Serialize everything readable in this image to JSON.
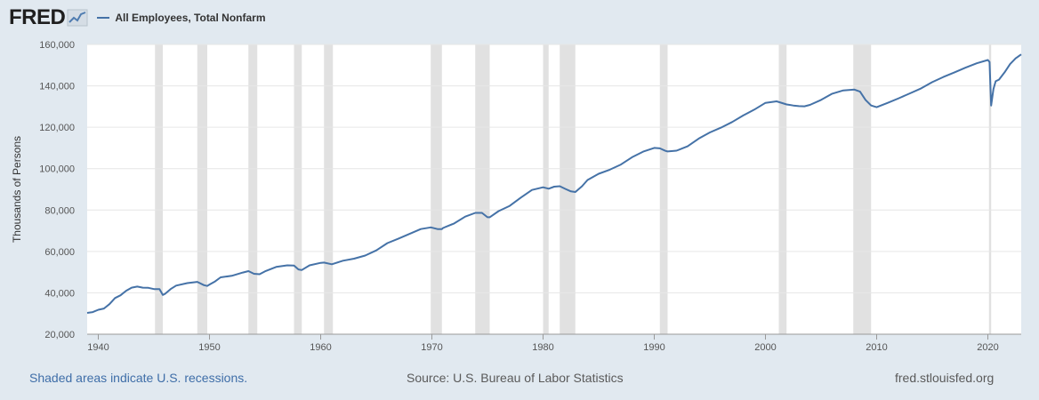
{
  "header": {
    "logo_text": "FRED",
    "logo_icon": "line-graph-icon",
    "legend_label": "All Employees, Total Nonfarm",
    "series_color": "#4572a7"
  },
  "footer": {
    "recession_note": "Shaded areas indicate U.S. recessions.",
    "source": "Source: U.S. Bureau of Labor Statistics",
    "site": "fred.stlouisfed.org"
  },
  "chart_data": {
    "type": "line",
    "title": "",
    "xlabel": "",
    "ylabel": "Thousands of Persons",
    "xlim": [
      1939,
      2023
    ],
    "ylim": [
      20000,
      160000
    ],
    "x_ticks": [
      1940,
      1950,
      1960,
      1970,
      1980,
      1990,
      2000,
      2010,
      2020
    ],
    "x_tick_labels": [
      "1940",
      "1950",
      "1960",
      "1970",
      "1980",
      "1990",
      "2000",
      "2010",
      "2020"
    ],
    "y_ticks": [
      20000,
      40000,
      60000,
      80000,
      100000,
      120000,
      140000,
      160000
    ],
    "y_tick_labels": [
      "20,000",
      "40,000",
      "60,000",
      "80,000",
      "100,000",
      "120,000",
      "140,000",
      "160,000"
    ],
    "grid": true,
    "recessions": [
      [
        1945.1,
        1945.8
      ],
      [
        1948.9,
        1949.8
      ],
      [
        1953.5,
        1954.3
      ],
      [
        1957.6,
        1958.3
      ],
      [
        1960.3,
        1961.1
      ],
      [
        1969.9,
        1970.9
      ],
      [
        1973.9,
        1975.2
      ],
      [
        1980.0,
        1980.5
      ],
      [
        1981.5,
        1982.9
      ],
      [
        1990.5,
        1991.2
      ],
      [
        2001.2,
        2001.9
      ],
      [
        2007.9,
        2009.5
      ],
      [
        2020.1,
        2020.3
      ]
    ],
    "series": [
      {
        "name": "All Employees, Total Nonfarm",
        "color": "#4572a7",
        "x": [
          1939.0,
          1939.5,
          1940.0,
          1940.5,
          1941.0,
          1941.5,
          1942.0,
          1942.5,
          1943.0,
          1943.5,
          1944.0,
          1944.5,
          1945.0,
          1945.5,
          1945.8,
          1946.0,
          1946.5,
          1947.0,
          1948.0,
          1948.9,
          1949.5,
          1949.8,
          1950.0,
          1950.5,
          1951.0,
          1952.0,
          1953.0,
          1953.5,
          1954.0,
          1954.5,
          1955.0,
          1956.0,
          1957.0,
          1957.6,
          1958.0,
          1958.3,
          1959.0,
          1960.0,
          1960.3,
          1961.0,
          1962.0,
          1963.0,
          1964.0,
          1965.0,
          1966.0,
          1967.0,
          1968.0,
          1969.0,
          1969.9,
          1970.5,
          1970.9,
          1971.0,
          1972.0,
          1973.0,
          1973.9,
          1974.5,
          1975.0,
          1975.2,
          1976.0,
          1977.0,
          1978.0,
          1979.0,
          1980.0,
          1980.5,
          1981.0,
          1981.5,
          1982.0,
          1982.5,
          1982.9,
          1983.5,
          1984.0,
          1985.0,
          1986.0,
          1987.0,
          1988.0,
          1989.0,
          1990.0,
          1990.5,
          1991.0,
          1991.2,
          1992.0,
          1993.0,
          1994.0,
          1995.0,
          1996.0,
          1997.0,
          1998.0,
          1999.0,
          2000.0,
          2001.0,
          2001.9,
          2002.5,
          2003.0,
          2003.5,
          2004.0,
          2005.0,
          2006.0,
          2007.0,
          2008.0,
          2008.5,
          2009.0,
          2009.5,
          2010.0,
          2011.0,
          2012.0,
          2013.0,
          2014.0,
          2015.0,
          2016.0,
          2017.0,
          2018.0,
          2019.0,
          2020.0,
          2020.15,
          2020.3,
          2020.5,
          2020.7,
          2021.0,
          2021.5,
          2022.0,
          2022.5,
          2023.0
        ],
        "y": [
          30300,
          30700,
          31800,
          32400,
          34500,
          37500,
          38800,
          41000,
          42500,
          43000,
          42500,
          42400,
          41800,
          41800,
          39000,
          39500,
          41800,
          43500,
          44700,
          45300,
          43700,
          43300,
          44000,
          45500,
          47500,
          48200,
          49800,
          50500,
          49200,
          49000,
          50400,
          52500,
          53300,
          53200,
          51300,
          51000,
          53300,
          54500,
          54600,
          53800,
          55500,
          56500,
          58000,
          60500,
          64000,
          66200,
          68500,
          70800,
          71600,
          70800,
          70800,
          71300,
          73500,
          76800,
          78600,
          78600,
          76500,
          76500,
          79500,
          82000,
          86000,
          89700,
          91000,
          90300,
          91300,
          91500,
          90200,
          89000,
          88700,
          91500,
          94500,
          97500,
          99500,
          102000,
          105500,
          108200,
          110000,
          109800,
          108600,
          108300,
          108700,
          110800,
          114500,
          117500,
          119800,
          122500,
          125700,
          128500,
          131800,
          132500,
          131000,
          130500,
          130200,
          130100,
          130800,
          133200,
          136200,
          137800,
          138200,
          137200,
          133200,
          130500,
          129700,
          131800,
          134000,
          136400,
          138800,
          141800,
          144300,
          146500,
          148800,
          150900,
          152500,
          151500,
          130500,
          138500,
          142200,
          143000,
          146500,
          150500,
          153300,
          155200
        ]
      }
    ]
  }
}
